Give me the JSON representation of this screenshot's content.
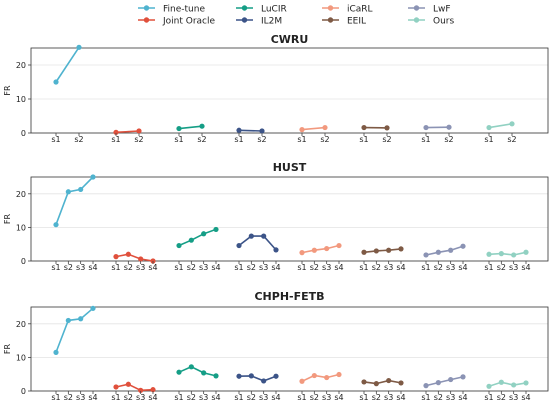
{
  "legend": [
    {
      "name": "Fine-tune",
      "color": "#4fb3cf"
    },
    {
      "name": "Joint Oracle",
      "color": "#e0503c"
    },
    {
      "name": "LuCIR",
      "color": "#159e86"
    },
    {
      "name": "IL2M",
      "color": "#3c5488"
    },
    {
      "name": "iCaRL",
      "color": "#f2997e"
    },
    {
      "name": "EEIL",
      "color": "#7e5a45"
    },
    {
      "name": "LwF",
      "color": "#8b93b4"
    },
    {
      "name": "Ours",
      "color": "#91d1c2"
    }
  ],
  "chart_data": [
    {
      "type": "line",
      "title": "CWRU",
      "ylabel": "FR",
      "ylim": [
        0,
        25
      ],
      "yticks": [
        0,
        10,
        20
      ],
      "grid": "horizontal",
      "categories": [
        "s1",
        "s2"
      ],
      "series": [
        {
          "name": "Fine-tune",
          "values": [
            15.0,
            25.2
          ]
        },
        {
          "name": "Joint Oracle",
          "values": [
            0.2,
            0.6
          ]
        },
        {
          "name": "LuCIR",
          "values": [
            1.3,
            2.0
          ]
        },
        {
          "name": "IL2M",
          "values": [
            0.8,
            0.6
          ]
        },
        {
          "name": "iCaRL",
          "values": [
            1.0,
            1.6
          ]
        },
        {
          "name": "EEIL",
          "values": [
            1.6,
            1.5
          ]
        },
        {
          "name": "LwF",
          "values": [
            1.6,
            1.7
          ]
        },
        {
          "name": "Ours",
          "values": [
            1.6,
            2.7
          ]
        }
      ]
    },
    {
      "type": "line",
      "title": "HUST",
      "ylabel": "FR",
      "ylim": [
        0,
        25
      ],
      "yticks": [
        0,
        10,
        20
      ],
      "grid": "horizontal",
      "categories": [
        "s1",
        "s2",
        "s3",
        "s4"
      ],
      "series": [
        {
          "name": "Fine-tune",
          "values": [
            10.8,
            20.6,
            21.3,
            25.0
          ]
        },
        {
          "name": "Joint Oracle",
          "values": [
            1.3,
            2.0,
            0.6,
            0.0
          ]
        },
        {
          "name": "LuCIR",
          "values": [
            4.6,
            6.2,
            8.1,
            9.4
          ]
        },
        {
          "name": "IL2M",
          "values": [
            4.6,
            7.4,
            7.4,
            3.3
          ]
        },
        {
          "name": "iCaRL",
          "values": [
            2.5,
            3.2,
            3.7,
            4.6
          ]
        },
        {
          "name": "EEIL",
          "values": [
            2.6,
            3.0,
            3.2,
            3.6
          ]
        },
        {
          "name": "LwF",
          "values": [
            1.8,
            2.6,
            3.2,
            4.4
          ]
        },
        {
          "name": "Ours",
          "values": [
            2.0,
            2.2,
            1.8,
            2.6
          ]
        }
      ]
    },
    {
      "type": "line",
      "title": "CHPH-FETB",
      "ylabel": "FR",
      "ylim": [
        0,
        25
      ],
      "yticks": [
        0,
        10,
        20
      ],
      "grid": "horizontal",
      "categories": [
        "s1",
        "s2",
        "s3",
        "s4"
      ],
      "series": [
        {
          "name": "Fine-tune",
          "values": [
            11.5,
            21.0,
            21.5,
            24.6
          ]
        },
        {
          "name": "Joint Oracle",
          "values": [
            1.2,
            2.0,
            0.2,
            0.4
          ]
        },
        {
          "name": "LuCIR",
          "values": [
            5.6,
            7.2,
            5.4,
            4.5
          ]
        },
        {
          "name": "IL2M",
          "values": [
            4.4,
            4.5,
            3.0,
            4.4
          ]
        },
        {
          "name": "iCaRL",
          "values": [
            2.9,
            4.6,
            4.0,
            4.9
          ]
        },
        {
          "name": "EEIL",
          "values": [
            2.7,
            2.2,
            3.1,
            2.4
          ]
        },
        {
          "name": "LwF",
          "values": [
            1.6,
            2.5,
            3.4,
            4.2
          ]
        },
        {
          "name": "Ours",
          "values": [
            1.4,
            2.6,
            1.8,
            2.4
          ]
        }
      ]
    }
  ]
}
